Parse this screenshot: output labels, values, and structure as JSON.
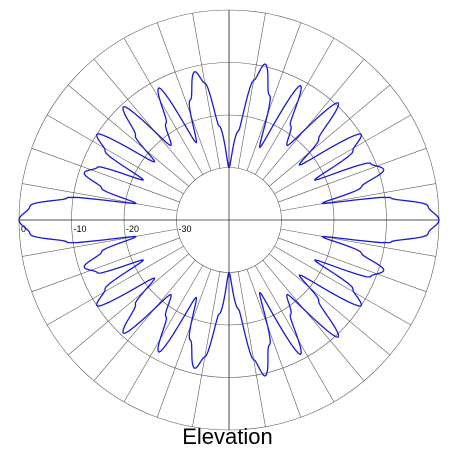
{
  "chart_data": {
    "type": "line",
    "subtype": "polar",
    "title": "Elevation",
    "radial_unit": "dB",
    "radial_range": [
      -40,
      0
    ],
    "radial_ticks": [
      "0",
      "-10",
      "-20",
      "-30"
    ],
    "angular_grid_step_deg": 10,
    "grid": true,
    "series": [
      {
        "color": "#1a1ad6",
        "angle_deg": [
          0,
          4,
          8,
          10,
          14,
          18,
          22,
          25,
          29,
          33,
          38,
          42,
          47,
          52,
          57,
          62,
          67,
          72,
          77,
          80,
          84,
          90,
          96,
          100,
          103,
          108,
          113,
          118,
          123,
          128,
          133,
          138,
          142,
          147,
          151,
          155,
          158,
          162,
          166,
          170,
          172,
          176,
          180
        ],
        "level_db": [
          0,
          -2,
          -9,
          -22,
          -14,
          -9,
          -11,
          -22,
          -13,
          -10,
          -23,
          -17,
          -9.5,
          -22,
          -18.5,
          -11,
          -25,
          -15,
          -9.5,
          -13,
          -23,
          -30,
          -22,
          -13.5,
          -11,
          -16,
          -24,
          -11.5,
          -18,
          -22,
          -10.5,
          -16,
          -22,
          -10,
          -13,
          -22,
          -13,
          -11,
          -15,
          -22,
          -9,
          -2,
          0
        ]
      }
    ]
  }
}
